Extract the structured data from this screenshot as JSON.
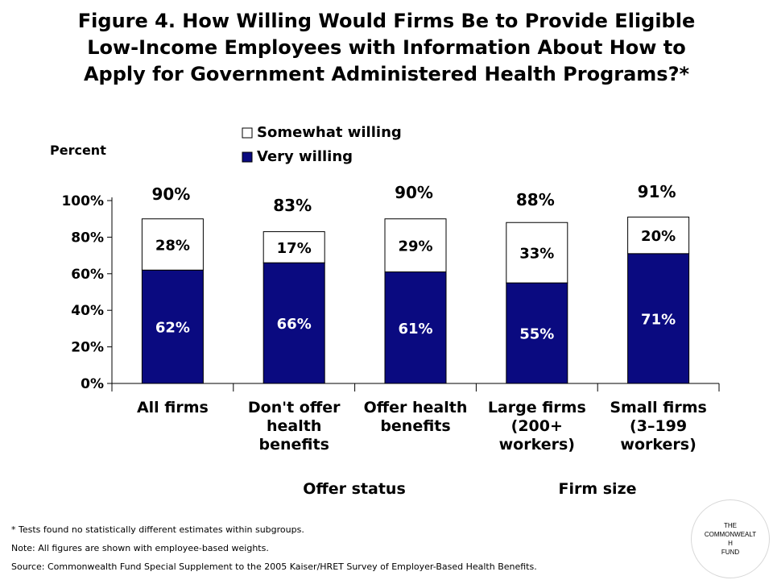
{
  "title_lines": [
    "Figure 4. How Willing Would Firms Be to Provide Eligible",
    "Low-Income Employees with Information About How to",
    "Apply for Government Administered Health Programs?*"
  ],
  "chart_data": {
    "type": "bar",
    "stacked": true,
    "ylabel": "Percent",
    "ylim": [
      0,
      100
    ],
    "yticks": [
      "0%",
      "20%",
      "40%",
      "60%",
      "80%",
      "100%"
    ],
    "categories": [
      [
        "All firms"
      ],
      [
        "Don't offer",
        "health",
        "benefits"
      ],
      [
        "Offer health",
        "benefits"
      ],
      [
        "Large firms",
        "(200+",
        "workers)"
      ],
      [
        "Small firms",
        "(3–199",
        "workers)"
      ]
    ],
    "series": [
      {
        "name": "Very willing",
        "values": [
          62,
          66,
          61,
          55,
          71
        ],
        "labels": [
          "62%",
          "66%",
          "61%",
          "55%",
          "71%"
        ],
        "color": "#0a0a80"
      },
      {
        "name": "Somewhat willing",
        "values": [
          28,
          17,
          29,
          33,
          20
        ],
        "labels": [
          "28%",
          "17%",
          "29%",
          "33%",
          "20%"
        ],
        "color": "#ffffff"
      }
    ],
    "totals": [
      "90%",
      "83%",
      "90%",
      "88%",
      "91%"
    ],
    "legend_position": "top-center",
    "group_labels": [
      "Offer status",
      "Firm size"
    ]
  },
  "notes": [
    "* Tests found no statistically different estimates within subgroups.",
    "Note: All figures are shown with employee-based weights.",
    "Source: Commonwealth Fund Special Supplement to the 2005 Kaiser/HRET Survey of Employer-Based Health Benefits."
  ],
  "logo": [
    "THE",
    "COMMONWEALT",
    "H",
    "FUND"
  ]
}
